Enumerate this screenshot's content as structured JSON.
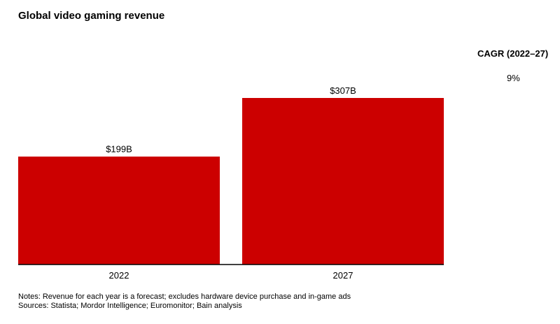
{
  "chart_data": {
    "type": "bar",
    "title": "Global video gaming revenue",
    "categories": [
      "2022",
      "2027"
    ],
    "values": [
      199,
      307
    ],
    "value_labels": [
      "$199B",
      "$307B"
    ],
    "xlabel": "",
    "ylabel": "",
    "ylim": [
      0,
      307
    ],
    "grid": false,
    "legend": "none",
    "bar_color": "#cc0000"
  },
  "side_panel": {
    "cagr_label": "CAGR (2022–27)",
    "cagr_value": "9%"
  },
  "footer": {
    "notes": "Notes: Revenue for each year is a forecast; excludes hardware device purchase and in-game ads",
    "sources": "Sources: Statista; Mordor Intelligence; Euromonitor; Bain analysis"
  }
}
